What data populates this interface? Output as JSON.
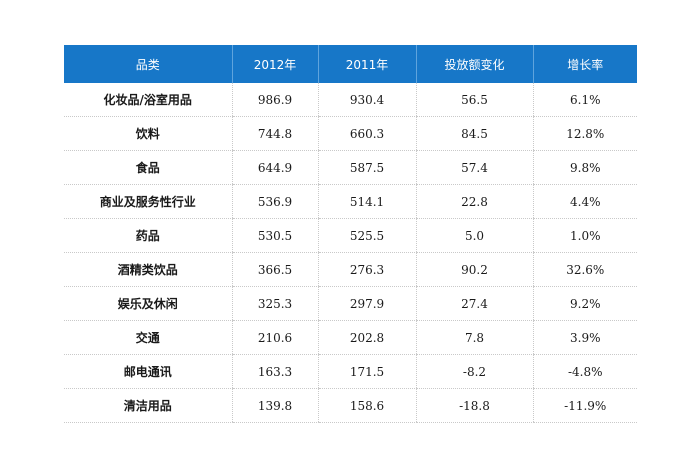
{
  "chart_data": {
    "type": "table",
    "columns": [
      "品类",
      "2012年",
      "2011年",
      "投放额变化",
      "增长率"
    ],
    "rows": [
      [
        "化妆品/浴室用品",
        "986.9",
        "930.4",
        "56.5",
        "6.1%"
      ],
      [
        "饮料",
        "744.8",
        "660.3",
        "84.5",
        "12.8%"
      ],
      [
        "食品",
        "644.9",
        "587.5",
        "57.4",
        "9.8%"
      ],
      [
        "商业及服务性行业",
        "536.9",
        "514.1",
        "22.8",
        "4.4%"
      ],
      [
        "药品",
        "530.5",
        "525.5",
        "5.0",
        "1.0%"
      ],
      [
        "酒精类饮品",
        "366.5",
        "276.3",
        "90.2",
        "32.6%"
      ],
      [
        "娱乐及休闲",
        "325.3",
        "297.9",
        "27.4",
        "9.2%"
      ],
      [
        "交通",
        "210.6",
        "202.8",
        "7.8",
        "3.9%"
      ],
      [
        "邮电通讯",
        "163.3",
        "171.5",
        "-8.2",
        "-4.8%"
      ],
      [
        "清洁用品",
        "139.8",
        "158.6",
        "-18.8",
        "-11.9%"
      ]
    ],
    "header_color": "#1777c8"
  }
}
